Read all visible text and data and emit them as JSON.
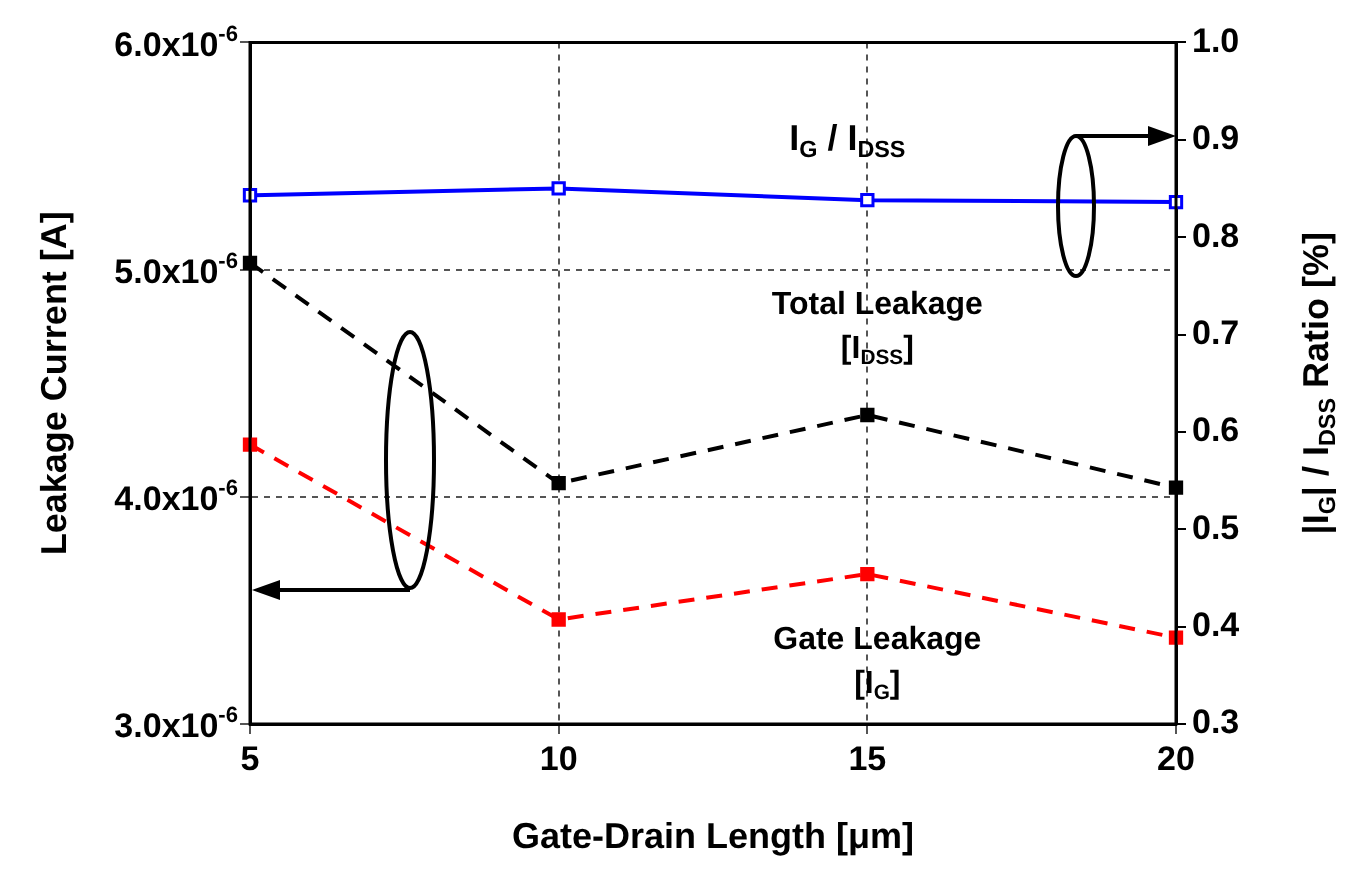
{
  "chart_data": {
    "type": "line",
    "xlabel": "Gate-Drain Length [μm]",
    "ylabel": "Leakage Current [A]",
    "y2label": "|I$_{G}$| / I$_{DSS}$ Ratio [%]",
    "x": [
      5,
      10,
      15,
      20
    ],
    "series": [
      {
        "name": "Total Leakage [I$_{DSS}$]",
        "color": "#000000",
        "values": [
          5.03e-06,
          4.06e-06,
          4.36e-06,
          4.04e-06
        ],
        "line_style": "dashed"
      },
      {
        "name": "Gate Leakage [I$_{G}$]",
        "color": "#ff0000",
        "values": [
          4.23e-06,
          3.46e-06,
          3.66e-06,
          3.38e-06
        ],
        "line_style": "dashed"
      },
      {
        "name": "I$_{G}$ / I$_{DSS}$",
        "color": "#0000ff",
        "values": [
          0.843,
          0.85,
          0.838,
          0.836
        ],
        "axis": "y2",
        "line_style": "solid"
      }
    ],
    "xlim": [
      5,
      20
    ],
    "xticks": [
      5,
      10,
      15,
      20
    ],
    "ylim": [
      3e-06,
      6e-06
    ],
    "yticks": [
      {
        "value": 3e-06,
        "label": "3.0x10$^{-6}$"
      },
      {
        "value": 4e-06,
        "label": "4.0x10$^{-6}$"
      },
      {
        "value": 5e-06,
        "label": "5.0x10$^{-6}$"
      },
      {
        "value": 6e-06,
        "label": "6.0x10$^{-6}$"
      }
    ],
    "y2lim": [
      0.3,
      1.0
    ],
    "y2ticks": [
      0.3,
      0.4,
      0.5,
      0.6,
      0.7,
      0.8,
      0.9,
      {
        "value": 1.0,
        "label": "1.0"
      }
    ],
    "grid": true,
    "legend": false,
    "marker": "square"
  }
}
